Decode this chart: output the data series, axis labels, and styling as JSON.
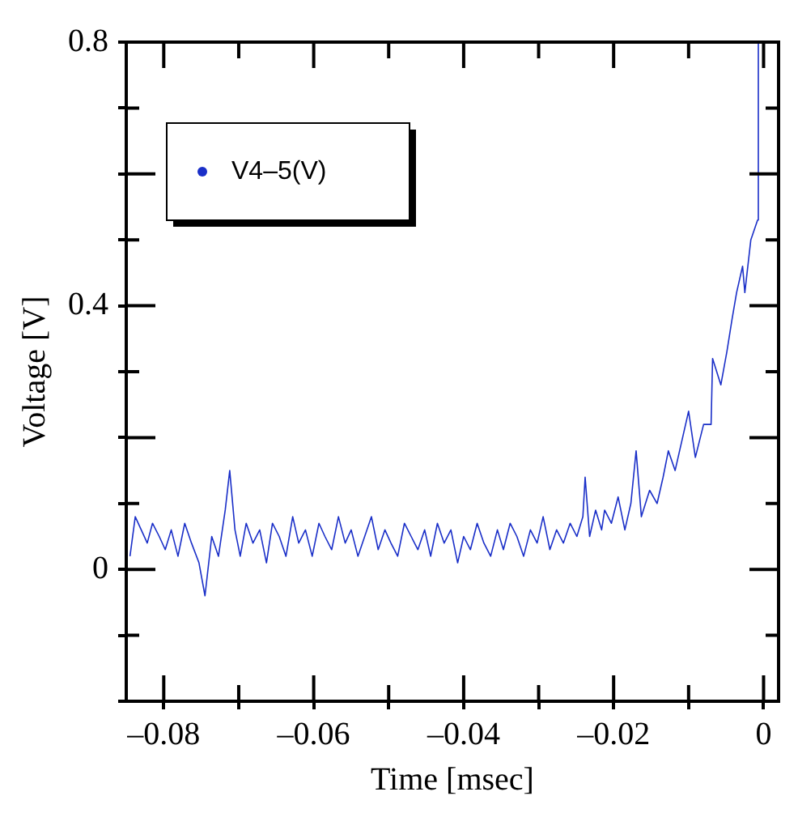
{
  "chart_data": {
    "type": "line",
    "xlabel": "Time [msec]",
    "ylabel": "Voltage [V]",
    "xlim": [
      -0.085,
      0.002
    ],
    "ylim": [
      -0.2,
      0.8
    ],
    "xticks": [
      {
        "value": -0.08,
        "label": "–0.08"
      },
      {
        "value": -0.07,
        "label": null
      },
      {
        "value": -0.06,
        "label": "–0.06"
      },
      {
        "value": -0.05,
        "label": null
      },
      {
        "value": -0.04,
        "label": "–0.04"
      },
      {
        "value": -0.03,
        "label": null
      },
      {
        "value": -0.02,
        "label": "–0.02"
      },
      {
        "value": -0.01,
        "label": null
      },
      0
    ],
    "yticks": [
      {
        "value": -0.2,
        "label": null
      },
      {
        "value": -0.1,
        "label": null
      },
      0,
      {
        "value": 0.1,
        "label": null
      },
      {
        "value": 0.2,
        "label": null
      },
      {
        "value": 0.3,
        "label": null
      },
      0.4,
      {
        "value": 0.5,
        "label": null
      },
      {
        "value": 0.6,
        "label": null
      },
      {
        "value": 0.7,
        "label": null
      },
      0.8
    ],
    "grid": false,
    "legend": "top left",
    "marker": "none",
    "line_style": "solid",
    "series": [
      {
        "name": "V4–5(V)",
        "color": "#1a2fc8",
        "x": [
          -0.0845,
          -0.0838,
          -0.083,
          -0.0822,
          -0.0815,
          -0.0806,
          -0.0798,
          -0.079,
          -0.0781,
          -0.0772,
          -0.0763,
          -0.0753,
          -0.0745,
          -0.0736,
          -0.0727,
          -0.0718,
          -0.0712,
          -0.0705,
          -0.0698,
          -0.069,
          -0.0681,
          -0.0672,
          -0.0663,
          -0.0655,
          -0.0646,
          -0.0637,
          -0.0628,
          -0.062,
          -0.0611,
          -0.0602,
          -0.0593,
          -0.0585,
          -0.0576,
          -0.0567,
          -0.0558,
          -0.055,
          -0.0541,
          -0.0532,
          -0.0523,
          -0.0514,
          -0.0505,
          -0.0497,
          -0.0488,
          -0.0479,
          -0.047,
          -0.0461,
          -0.0452,
          -0.0444,
          -0.0435,
          -0.0426,
          -0.0417,
          -0.0408,
          -0.04,
          -0.0391,
          -0.0382,
          -0.0373,
          -0.0364,
          -0.0355,
          -0.0347,
          -0.0338,
          -0.0329,
          -0.032,
          -0.0311,
          -0.0302,
          -0.0294,
          -0.0285,
          -0.0276,
          -0.0267,
          -0.0258,
          -0.0249,
          -0.0241,
          -0.0238,
          -0.0232,
          -0.0224,
          -0.0216,
          -0.0212,
          -0.0203,
          -0.0194,
          -0.0185,
          -0.0177,
          -0.017,
          -0.0163,
          -0.0152,
          -0.0142,
          -0.0134,
          -0.0127,
          -0.0118,
          -0.01,
          -0.0091,
          -0.008,
          -0.007,
          -0.0068,
          -0.0057,
          -0.0049,
          -0.0042,
          -0.0036,
          -0.0028,
          -0.0025,
          -0.0017,
          -0.0008,
          -0.0007
        ],
        "values": [
          0.02,
          0.08,
          0.06,
          0.04,
          0.07,
          0.05,
          0.03,
          0.06,
          0.02,
          0.07,
          0.04,
          0.01,
          -0.04,
          0.05,
          0.02,
          0.09,
          0.15,
          0.06,
          0.02,
          0.07,
          0.04,
          0.06,
          0.01,
          0.07,
          0.05,
          0.02,
          0.08,
          0.04,
          0.06,
          0.02,
          0.07,
          0.05,
          0.03,
          0.08,
          0.04,
          0.06,
          0.02,
          0.05,
          0.08,
          0.03,
          0.06,
          0.04,
          0.02,
          0.07,
          0.05,
          0.03,
          0.06,
          0.02,
          0.07,
          0.04,
          0.06,
          0.01,
          0.05,
          0.03,
          0.07,
          0.04,
          0.02,
          0.06,
          0.03,
          0.07,
          0.05,
          0.02,
          0.06,
          0.04,
          0.08,
          0.03,
          0.06,
          0.04,
          0.07,
          0.05,
          0.08,
          0.14,
          0.05,
          0.09,
          0.06,
          0.09,
          0.07,
          0.11,
          0.06,
          0.1,
          0.18,
          0.08,
          0.12,
          0.1,
          0.14,
          0.18,
          0.15,
          0.24,
          0.17,
          0.22,
          0.22,
          0.32,
          0.28,
          0.33,
          0.38,
          0.42,
          0.46,
          0.42,
          0.5,
          0.53,
          0.8
        ]
      }
    ]
  }
}
